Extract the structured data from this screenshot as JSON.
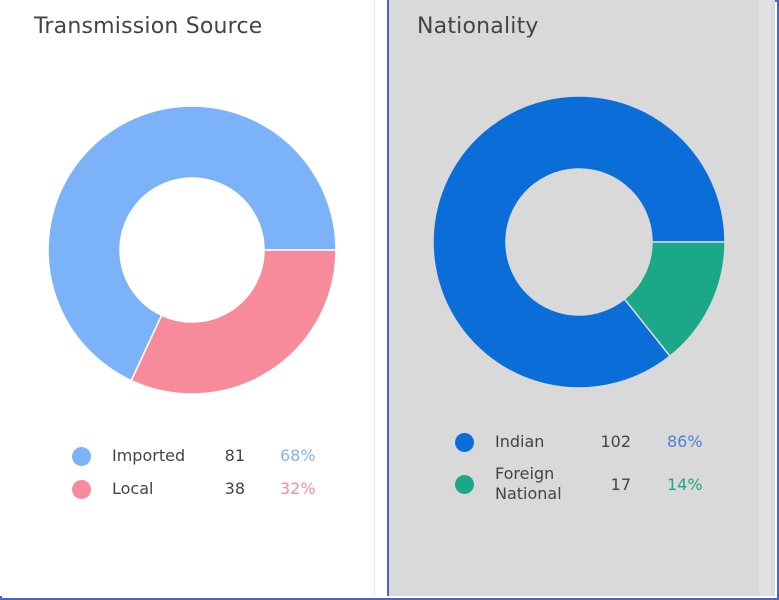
{
  "chart_data": [
    {
      "type": "pie",
      "title": "Transmission Source",
      "categories": [
        "Imported",
        "Local"
      ],
      "values": [
        81,
        38
      ],
      "percentages": [
        "68%",
        "32%"
      ],
      "colors": [
        "#7cb3f8",
        "#f88b9b"
      ],
      "legend": "bottom"
    },
    {
      "type": "pie",
      "title": "Nationality",
      "categories": [
        "Indian",
        "Foreign National"
      ],
      "category_lines": [
        [
          "Indian"
        ],
        [
          "Foreign",
          "National"
        ]
      ],
      "values": [
        102,
        17
      ],
      "percentages": [
        "86%",
        "14%"
      ],
      "colors": [
        "#0b6ed8",
        "#1aa888"
      ],
      "legend": "bottom"
    }
  ]
}
